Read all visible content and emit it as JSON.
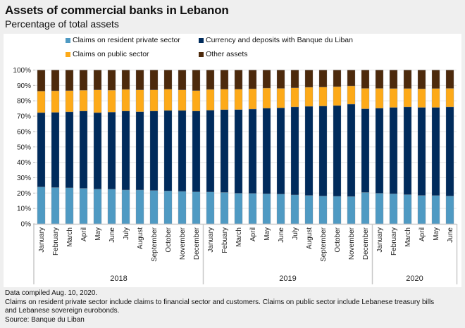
{
  "title": "Assets of commercial banks in Lebanon",
  "subtitle": "Percentage of total assets",
  "notes": [
    "Data compiled Aug. 10, 2020.",
    "Claims on resident private sector include claims to financial sector and customers. Claims on public sector include Lebanese treasury bills",
    "and Lebanese sovereign eurobonds.",
    "Source: Banque du Liban"
  ],
  "chart_data": {
    "type": "bar",
    "stacked": true,
    "title": "Assets of commercial banks in Lebanon",
    "subtitle": "Percentage of total assets",
    "xlabel": "",
    "ylabel": "",
    "ylim": [
      0,
      100
    ],
    "yticks": [
      "0%",
      "10%",
      "20%",
      "30%",
      "40%",
      "50%",
      "60%",
      "70%",
      "80%",
      "90%",
      "100%"
    ],
    "grid": true,
    "legend_position": "top",
    "groups": [
      {
        "label": "2018",
        "categories": [
          "January",
          "February",
          "March",
          "April",
          "May",
          "June",
          "July",
          "August",
          "September",
          "October",
          "November",
          "December"
        ]
      },
      {
        "label": "2019",
        "categories": [
          "January",
          "Febuary",
          "March",
          "April",
          "May",
          "June",
          "July",
          "August",
          "September",
          "October",
          "November",
          "December"
        ]
      },
      {
        "label": "2020",
        "categories": [
          "January",
          "February",
          "March",
          "April",
          "May",
          "June"
        ]
      }
    ],
    "series": [
      {
        "name": "Claims on resident private sector",
        "color": "#4f9ac3",
        "values": [
          24.0,
          23.6,
          23.4,
          23.1,
          22.6,
          22.5,
          22.0,
          22.0,
          21.7,
          21.4,
          21.1,
          20.8,
          20.7,
          20.4,
          19.9,
          19.8,
          19.5,
          19.3,
          18.8,
          18.5,
          18.1,
          17.9,
          17.8,
          20.4,
          19.9,
          19.5,
          19.0,
          18.5,
          18.4,
          18.1
        ]
      },
      {
        "name": "Currency and deposits with Banque du Liban",
        "color": "#002b5c",
        "values": [
          48.3,
          48.9,
          49.4,
          50.2,
          49.7,
          50.1,
          51.3,
          50.9,
          51.6,
          52.3,
          52.6,
          52.5,
          53.2,
          53.8,
          54.4,
          54.8,
          55.7,
          56.1,
          57.2,
          57.9,
          58.5,
          59.0,
          60.0,
          54.4,
          55.3,
          56.2,
          57.0,
          57.2,
          57.3,
          57.9
        ]
      },
      {
        "name": "Claims on public sector",
        "color": "#fdaa19",
        "values": [
          14.0,
          14.0,
          13.8,
          13.5,
          14.8,
          14.3,
          14.1,
          14.2,
          13.8,
          13.8,
          13.4,
          13.3,
          13.5,
          13.3,
          13.2,
          13.2,
          13.1,
          12.7,
          12.4,
          12.4,
          12.3,
          12.3,
          11.9,
          13.3,
          12.9,
          12.3,
          12.0,
          12.1,
          12.3,
          12.1
        ]
      },
      {
        "name": "Other assets",
        "color": "#4d2a0c",
        "values": [
          13.7,
          13.5,
          13.4,
          13.2,
          12.9,
          13.1,
          12.6,
          12.9,
          12.9,
          12.5,
          12.9,
          13.4,
          12.6,
          12.5,
          12.5,
          12.2,
          11.7,
          11.9,
          11.6,
          11.2,
          11.1,
          10.8,
          10.3,
          11.9,
          11.9,
          12.0,
          12.0,
          12.2,
          12.0,
          11.9
        ]
      }
    ]
  }
}
